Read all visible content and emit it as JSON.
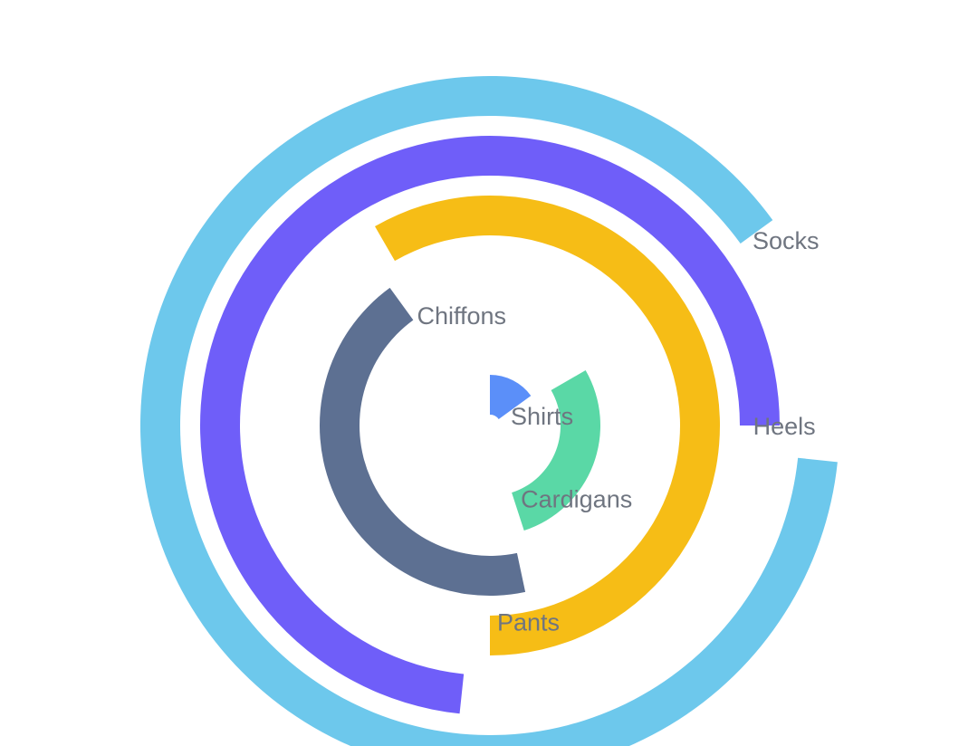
{
  "chart_data": {
    "type": "rose-bar",
    "title": "",
    "categories": [
      "Shirts",
      "Cardigans",
      "Chiffons",
      "Pants",
      "Heels",
      "Socks"
    ],
    "series": [
      {
        "values": [
          10,
          20,
          30,
          40,
          50,
          60
        ],
        "colors": [
          "#5b8ff9",
          "#5ad8a6",
          "#5d7092",
          "#f6bd16",
          "#6f5ef9",
          "#6dc8ec"
        ]
      }
    ],
    "label_color": "#6f7580",
    "background": "#ffffff",
    "grid": false,
    "legend": "none"
  }
}
